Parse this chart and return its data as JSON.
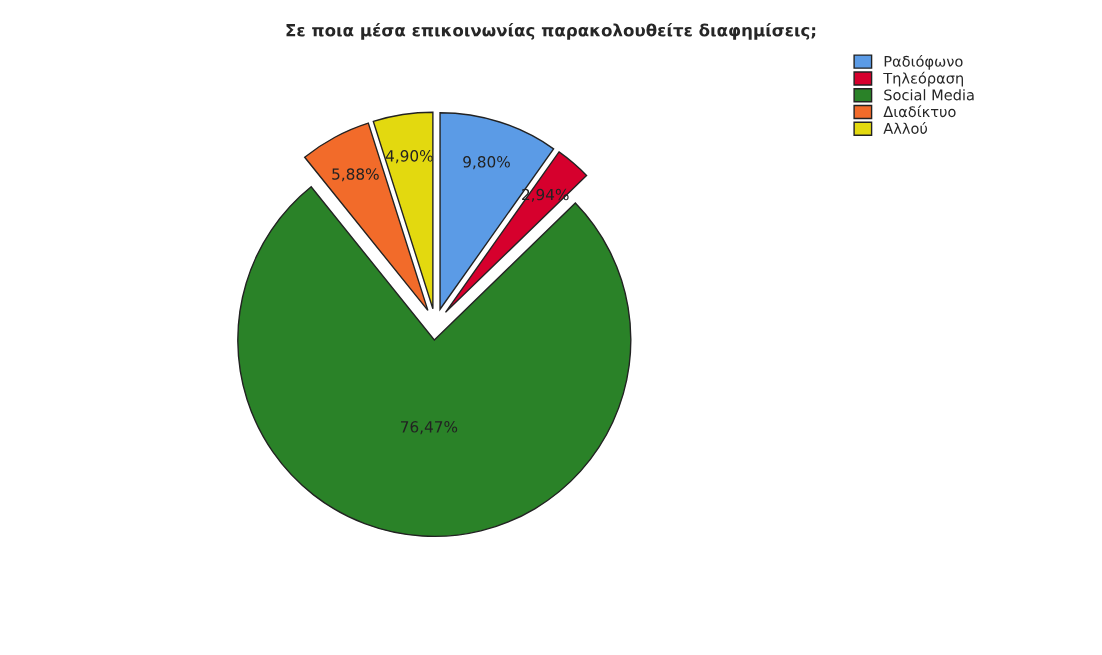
{
  "chart_data": {
    "type": "pie",
    "title": "Σε ποια μέσα επικοινωνίας παρακολουθείτε διαφημίσεις;",
    "categories": [
      "Ραδιόφωνο",
      "Τηλεόραση",
      "Social Media",
      "Διαδίκτυο",
      "Αλλού"
    ],
    "values": [
      9.8,
      2.94,
      76.47,
      5.88,
      4.9
    ],
    "value_labels": [
      "9,80%",
      "2,94%",
      "76,47%",
      "5,88%",
      "4,90%"
    ],
    "colors": [
      "#5b9be6",
      "#d6002d",
      "#2a8228",
      "#f26b2a",
      "#e3d90f"
    ],
    "legend": "top right"
  }
}
